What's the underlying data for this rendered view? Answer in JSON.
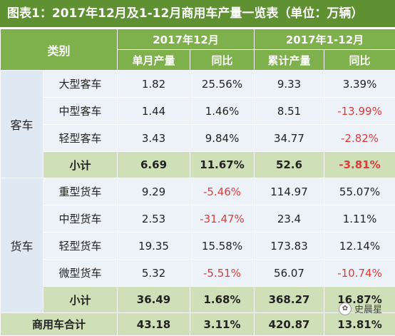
{
  "title": "图表1：2017年12月及1-12月商用车产量一览表（单位：万辆）",
  "header": {
    "category": "类别",
    "period_dec": "2017年12月",
    "period_ytd": "2017年1-12月",
    "monthly_output": "单月产量",
    "yoy": "同比",
    "cumulative_output": "累计产量",
    "yoy2": "同比"
  },
  "groups": {
    "passenger": "客车",
    "cargo": "货车"
  },
  "rows": [
    {
      "name": "大型客车",
      "monthly": "1.82",
      "yoy_m": "25.56%",
      "cum": "9.33",
      "yoy_c": "3.39%"
    },
    {
      "name": "中型客车",
      "monthly": "1.44",
      "yoy_m": "1.46%",
      "cum": "8.51",
      "yoy_c": "-13.99%"
    },
    {
      "name": "轻型客车",
      "monthly": "3.43",
      "yoy_m": "9.84%",
      "cum": "34.77",
      "yoy_c": "-2.82%"
    },
    {
      "name": "小计",
      "monthly": "6.69",
      "yoy_m": "11.67%",
      "cum": "52.6",
      "yoy_c": "-3.81%"
    },
    {
      "name": "重型货车",
      "monthly": "9.29",
      "yoy_m": "-5.46%",
      "cum": "114.97",
      "yoy_c": "55.07%"
    },
    {
      "name": "中型货车",
      "monthly": "2.53",
      "yoy_m": "-31.47%",
      "cum": "23.4",
      "yoy_c": "1.11%"
    },
    {
      "name": "轻型货车",
      "monthly": "19.35",
      "yoy_m": "15.58%",
      "cum": "173.83",
      "yoy_c": "12.14%"
    },
    {
      "name": "微型货车",
      "monthly": "5.32",
      "yoy_m": "-5.51%",
      "cum": "56.07",
      "yoy_c": "-10.74%"
    },
    {
      "name": "小计",
      "monthly": "36.49",
      "yoy_m": "1.68%",
      "cum": "368.27",
      "yoy_c": "16.87%"
    },
    {
      "name": "商用车合计",
      "monthly": "43.18",
      "yoy_m": "3.11%",
      "cum": "420.87",
      "yoy_c": "13.81%"
    }
  ],
  "watermark": "史晨星",
  "colors": {
    "title_bg": "#5f9132",
    "header_bg": "#7eb14b",
    "subtotal_bg": "#cfe0b8",
    "row_bg": "#edf2f8",
    "negative": "#e03a3a"
  }
}
